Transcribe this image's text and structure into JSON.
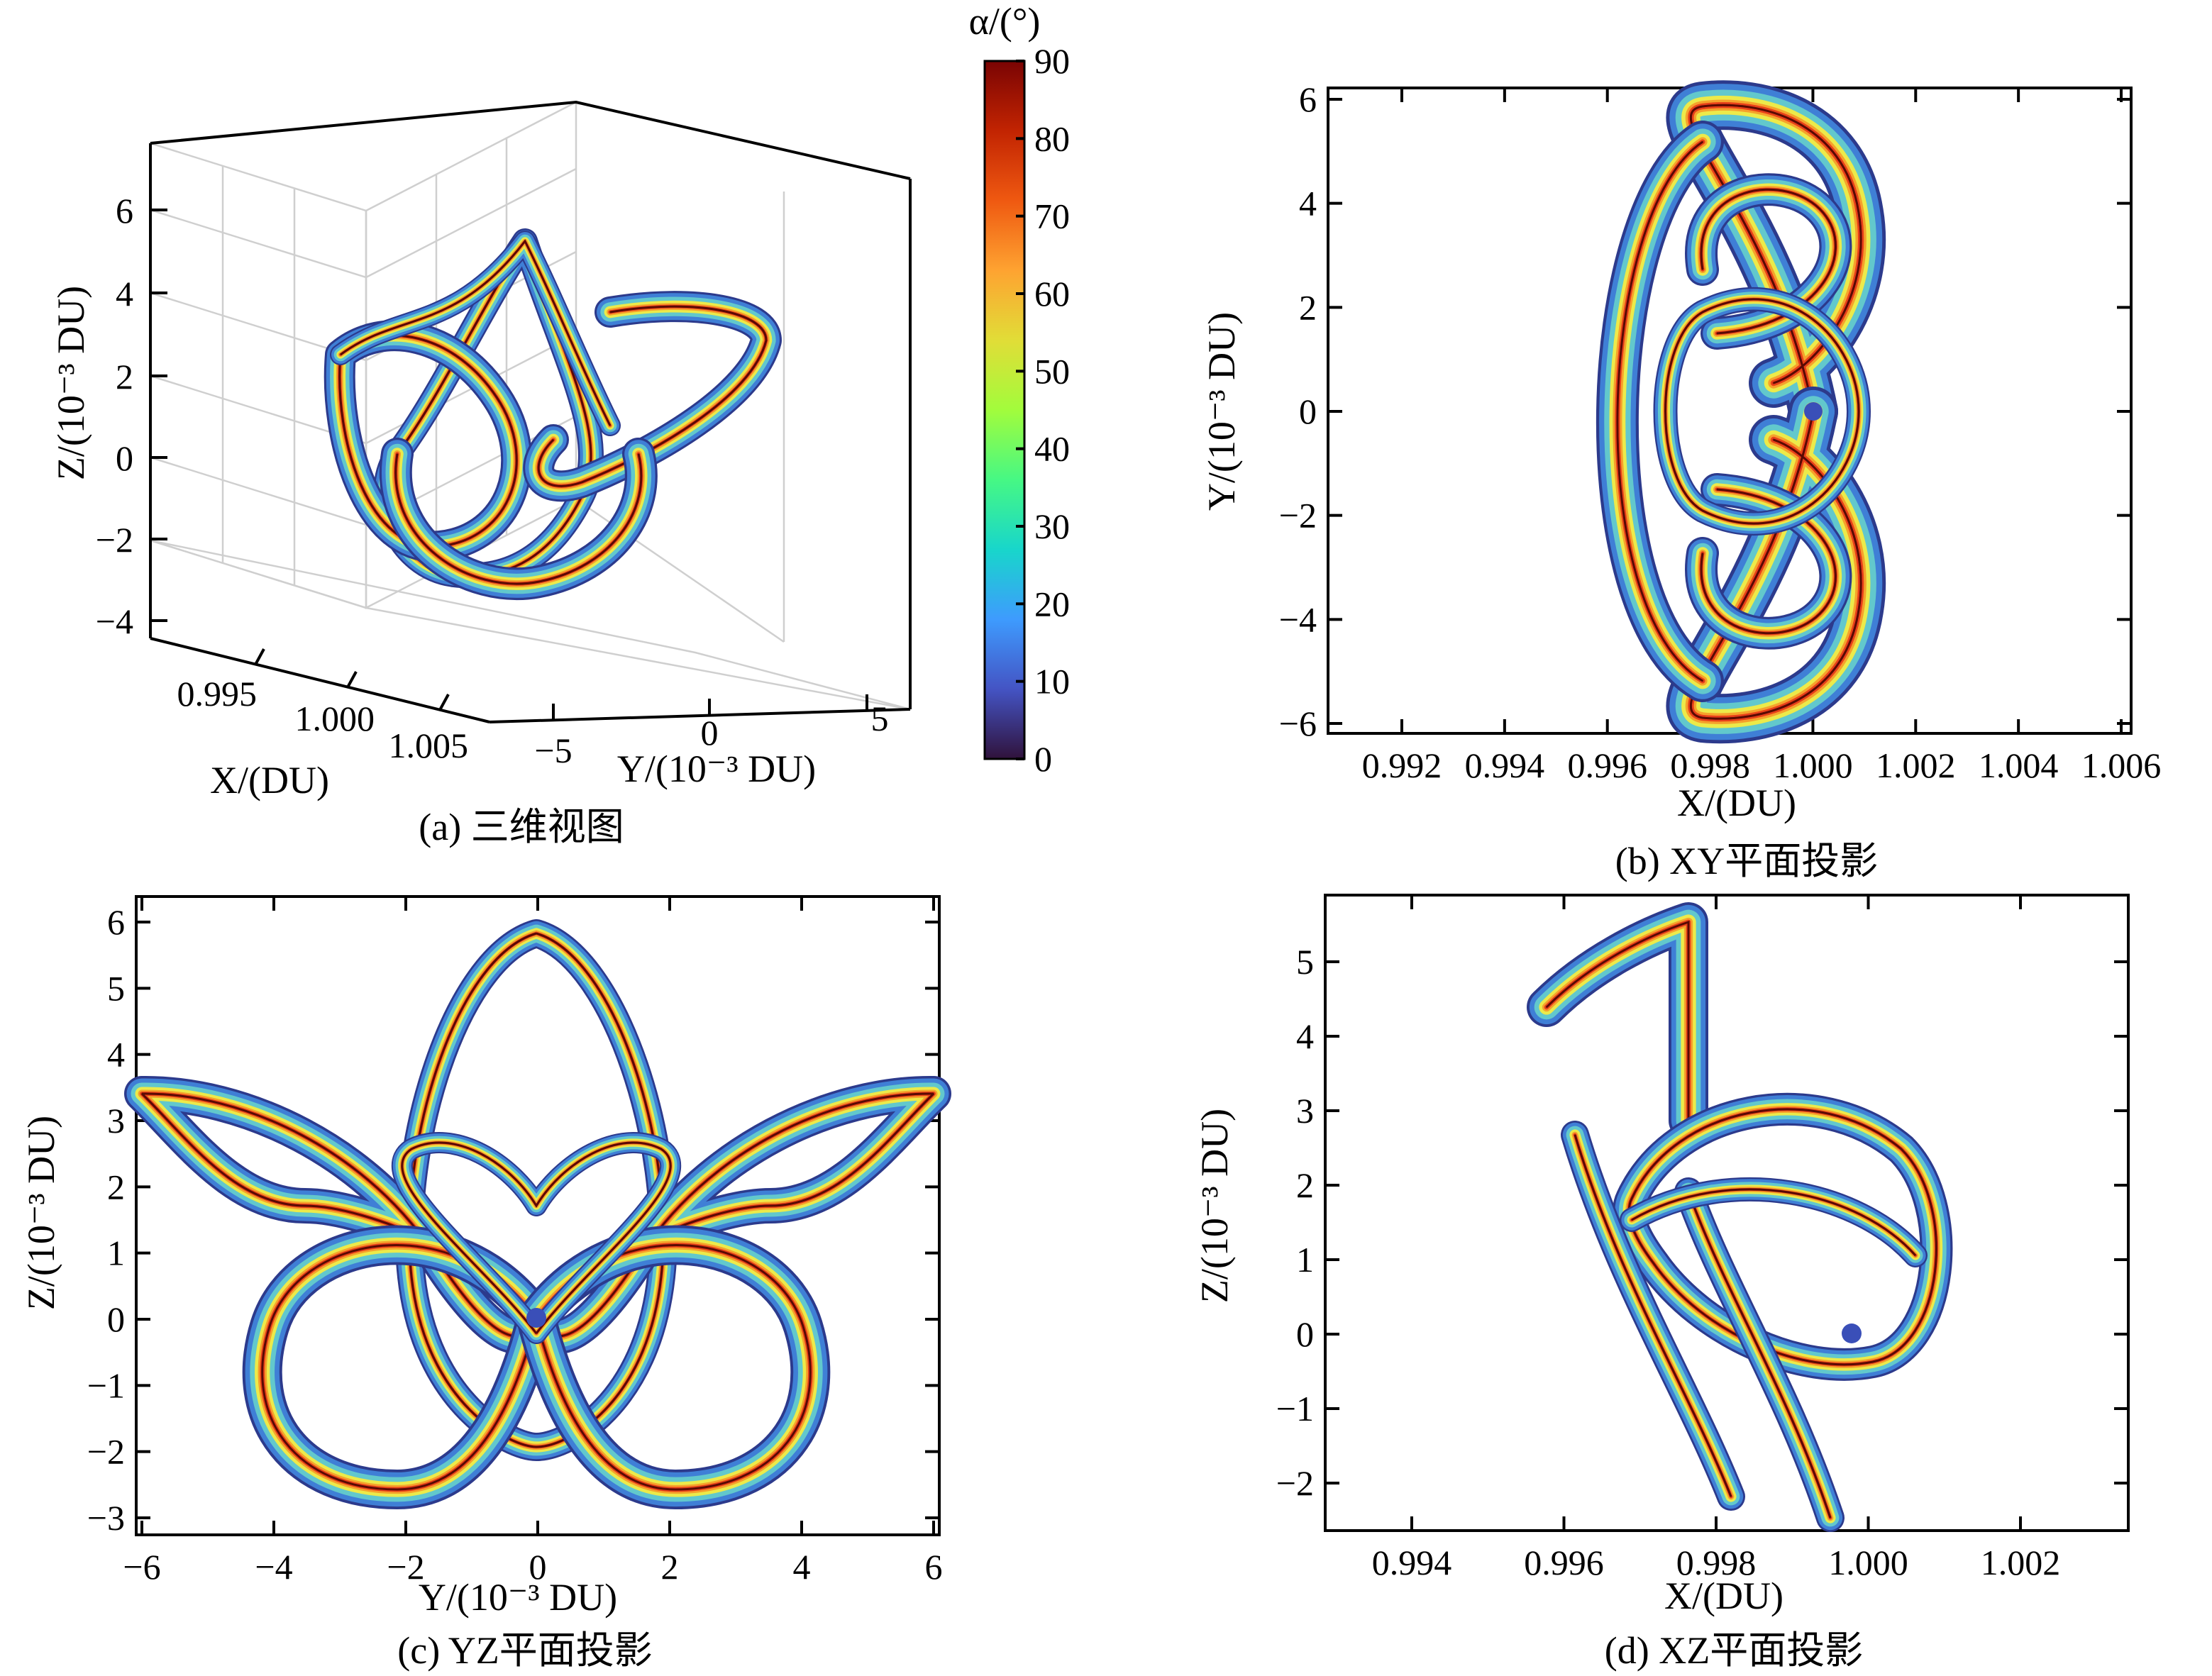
{
  "colorbar": {
    "label": "α/(°)",
    "ticks": [
      "90",
      "80",
      "70",
      "60",
      "50",
      "40",
      "30",
      "20",
      "10",
      "0"
    ],
    "min": 0,
    "max": 90,
    "colormap": [
      "#30123b",
      "#4454c4",
      "#3e9bfe",
      "#18d6cb",
      "#46f884",
      "#a2fc3c",
      "#e1dd37",
      "#fea331",
      "#ef5911",
      "#c22402",
      "#7a0403"
    ]
  },
  "panels": {
    "a": {
      "caption": "(a) 三维视图",
      "zlabel": "Z/(10⁻³ DU)",
      "xlabel": "X/(DU)",
      "ylabel": "Y/(10⁻³ DU)",
      "zticks": [
        "6",
        "4",
        "2",
        "0",
        "−2",
        "−4"
      ],
      "xticks": [
        "0.995",
        "1.000",
        "1.005"
      ],
      "yticks": [
        "−5",
        "0",
        "5"
      ]
    },
    "b": {
      "caption": "(b) XY平面投影",
      "xlabel": "X/(DU)",
      "ylabel": "Y/(10⁻³ DU)",
      "xticks": [
        "0.992",
        "0.994",
        "0.996",
        "0.998",
        "1.000",
        "1.002",
        "1.004",
        "1.006"
      ],
      "yticks": [
        "6",
        "4",
        "2",
        "0",
        "−2",
        "−4",
        "−6"
      ]
    },
    "c": {
      "caption": "(c) YZ平面投影",
      "xlabel": "Y/(10⁻³ DU)",
      "ylabel": "Z/(10⁻³ DU)",
      "xticks": [
        "−6",
        "−4",
        "−2",
        "0",
        "2",
        "4",
        "6"
      ],
      "yticks": [
        "6",
        "5",
        "4",
        "3",
        "2",
        "1",
        "0",
        "−1",
        "−2",
        "−3"
      ]
    },
    "d": {
      "caption": "(d) XZ平面投影",
      "xlabel": "X/(DU)",
      "ylabel": "Z/(10⁻³ DU)",
      "xticks": [
        "0.994",
        "0.996",
        "0.998",
        "1.000",
        "1.002"
      ],
      "yticks": [
        "5",
        "4",
        "3",
        "2",
        "1",
        "0",
        "−1",
        "−2"
      ]
    }
  },
  "chart_data": [
    {
      "panel": "a",
      "type": "line",
      "title": "(a) 三维视图",
      "view": "3d",
      "xlabel": "X/(DU)",
      "ylabel": "Y/(10⁻³ DU)",
      "zlabel": "Z/(10⁻³ DU)",
      "xlim": [
        0.993,
        1.007
      ],
      "ylim": [
        -6,
        6
      ],
      "zlim": [
        -4.5,
        7.5
      ],
      "color_by": "α (°)",
      "color_range": [
        0,
        90
      ],
      "series": [
        {
          "name": "orbit ribbon",
          "description": "periodic orbit around the primary at X≈1.000, colored by α"
        }
      ]
    },
    {
      "panel": "b",
      "type": "line",
      "title": "(b) XY平面投影",
      "xlabel": "X/(DU)",
      "ylabel": "Y/(10⁻³ DU)",
      "xlim": [
        0.991,
        1.006
      ],
      "ylim": [
        -6.1,
        6.1
      ],
      "color_by": "α (°)",
      "color_range": [
        0,
        90
      ],
      "series": [
        {
          "name": "orbit ribbon XY",
          "x_range": [
            0.9963,
            1.0008
          ],
          "y_range": [
            -5.9,
            5.9
          ]
        }
      ],
      "marker": {
        "name": "primary body",
        "x": 1.0,
        "y": 0
      }
    },
    {
      "panel": "c",
      "type": "line",
      "title": "(c) YZ平面投影",
      "xlabel": "Y/(10⁻³ DU)",
      "ylabel": "Z/(10⁻³ DU)",
      "xlim": [
        -6.2,
        6.2
      ],
      "ylim": [
        -3.2,
        6.4
      ],
      "color_by": "α (°)",
      "color_range": [
        0,
        90
      ],
      "series": [
        {
          "name": "orbit ribbon YZ",
          "x_range": [
            -6.0,
            6.0
          ],
          "y_range": [
            -2.6,
            5.8
          ]
        }
      ],
      "marker": {
        "name": "primary body",
        "x": 0,
        "y": 0
      }
    },
    {
      "panel": "d",
      "type": "line",
      "title": "(d) XZ平面投影",
      "xlabel": "X/(DU)",
      "ylabel": "Z/(10⁻³ DU)",
      "xlim": [
        0.993,
        1.0036
      ],
      "ylim": [
        -2.65,
        5.85
      ],
      "color_by": "α (°)",
      "color_range": [
        0,
        90
      ],
      "series": [
        {
          "name": "orbit ribbon XZ",
          "x_range": [
            0.9956,
            1.001
          ],
          "y_range": [
            -2.6,
            5.8
          ]
        }
      ],
      "marker": {
        "name": "primary body",
        "x": 1.0,
        "y": 0
      }
    }
  ]
}
